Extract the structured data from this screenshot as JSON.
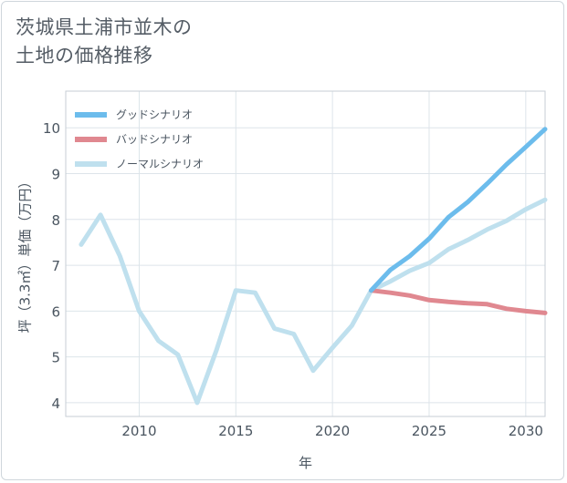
{
  "title_line1": "茨城県土浦市並木の",
  "title_line2": "土地の価格推移",
  "chart_data": {
    "type": "line",
    "title": "茨城県土浦市並木の土地の価格推移",
    "xlabel": "年",
    "ylabel": "坪（3.3㎡）単価（万円）",
    "xlim": [
      2006.2,
      2031
    ],
    "ylim": [
      3.7,
      10.8
    ],
    "xticks": [
      2010,
      2015,
      2020,
      2025,
      2030
    ],
    "yticks": [
      4,
      5,
      6,
      7,
      8,
      9,
      10
    ],
    "legend_position": "top-left",
    "series": [
      {
        "name": "グッドシナリオ",
        "color": "#6cbcec",
        "x": [
          2022,
          2023,
          2024,
          2025,
          2026,
          2027,
          2028,
          2029,
          2030,
          2031
        ],
        "values": [
          6.45,
          6.9,
          7.2,
          7.58,
          8.05,
          8.38,
          8.78,
          9.2,
          9.58,
          9.97
        ]
      },
      {
        "name": "バッドシナリオ",
        "color": "#e08890",
        "x": [
          2022,
          2023,
          2024,
          2025,
          2026,
          2027,
          2028,
          2029,
          2030,
          2031
        ],
        "values": [
          6.45,
          6.4,
          6.34,
          6.24,
          6.2,
          6.17,
          6.15,
          6.05,
          6.0,
          5.96
        ]
      },
      {
        "name": "ノーマルシナリオ",
        "color": "#bfe0ee",
        "x": [
          2007,
          2008,
          2009,
          2010,
          2011,
          2012,
          2013,
          2014,
          2015,
          2016,
          2017,
          2018,
          2019,
          2020,
          2021,
          2022,
          2023,
          2024,
          2025,
          2026,
          2027,
          2028,
          2029,
          2030,
          2031
        ],
        "values": [
          7.45,
          8.1,
          7.2,
          6.0,
          5.35,
          5.05,
          4.0,
          5.15,
          6.45,
          6.4,
          5.62,
          5.5,
          4.7,
          5.2,
          5.68,
          6.45,
          6.65,
          6.88,
          7.05,
          7.35,
          7.55,
          7.78,
          7.97,
          8.22,
          8.43
        ]
      }
    ]
  }
}
